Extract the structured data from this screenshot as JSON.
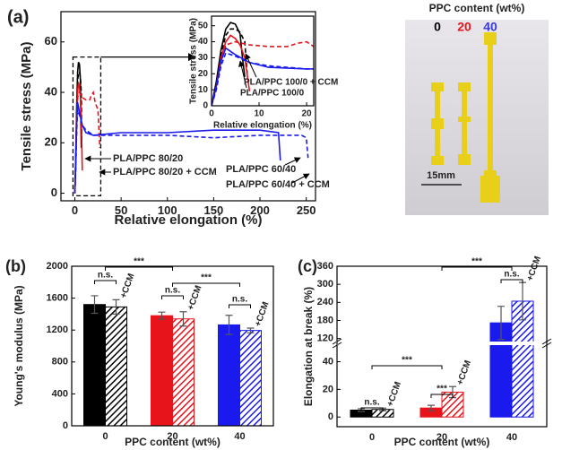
{
  "chart_data": [
    {
      "type": "line",
      "panel_label": "(a)",
      "xlabel": "Relative elongation (%)",
      "ylabel": "Tensile stress (MPa)",
      "xlim": [
        -15,
        260
      ],
      "xticks": [
        0,
        50,
        100,
        150,
        200,
        250
      ],
      "ylim": [
        -3,
        72
      ],
      "yticks": [
        0,
        20,
        40,
        60
      ],
      "series": [
        {
          "name": "PLA/PPC 100/0",
          "color": "#000000",
          "dashed": false,
          "x": [
            0,
            1,
            2,
            3,
            4,
            5,
            6,
            6.5,
            7
          ],
          "values": [
            0,
            15,
            35,
            48,
            52,
            51,
            45,
            30,
            18
          ]
        },
        {
          "name": "PLA/PPC 100/0 + CCM",
          "color": "#000000",
          "dashed": true,
          "x": [
            0,
            1,
            2,
            3,
            4,
            5,
            6,
            7,
            7.5
          ],
          "values": [
            0,
            14,
            32,
            44,
            48,
            48,
            46,
            40,
            20
          ]
        },
        {
          "name": "PLA/PPC 80/20",
          "color": "#e8141c",
          "dashed": false,
          "x": [
            0,
            1,
            2,
            3,
            4,
            5,
            6,
            7,
            8
          ],
          "values": [
            0,
            12,
            30,
            40,
            44,
            42,
            38,
            30,
            9
          ]
        },
        {
          "name": "PLA/PPC 80/20 + CCM",
          "color": "#e8141c",
          "dashed": true,
          "x": [
            0,
            1,
            2,
            3,
            5,
            8,
            12,
            16,
            18,
            20,
            22,
            25,
            27
          ],
          "values": [
            0,
            10,
            28,
            38,
            40,
            38,
            37,
            37,
            39,
            40,
            36,
            33,
            18
          ]
        },
        {
          "name": "PLA/PPC 60/40",
          "color": "#1a1aee",
          "dashed": false,
          "x": [
            0,
            1,
            2,
            3,
            5,
            8,
            12,
            20,
            50,
            100,
            150,
            200,
            220,
            222
          ],
          "values": [
            0,
            12,
            28,
            36,
            32,
            27,
            24,
            23,
            24,
            24,
            25,
            25,
            24,
            13
          ]
        },
        {
          "name": "PLA/PPC 60/40 + CCM",
          "color": "#1a1aee",
          "dashed": true,
          "x": [
            0,
            1,
            2,
            3,
            5,
            8,
            12,
            20,
            50,
            100,
            150,
            200,
            245,
            250,
            252
          ],
          "values": [
            0,
            10,
            25,
            33,
            31,
            27,
            25,
            23,
            23,
            23,
            22,
            23,
            23,
            22,
            14
          ]
        }
      ],
      "inset": {
        "xlabel": "Relative elongation (%)",
        "ylabel": "Tensile stress (MPa)",
        "xlim": [
          0,
          21.5
        ],
        "xticks": [
          0,
          10,
          20
        ],
        "ylim": [
          0,
          56
        ],
        "yticks": [
          0,
          10,
          20,
          30,
          40,
          50
        ]
      }
    },
    {
      "type": "bar",
      "panel_label": "(b)",
      "xlabel": "PPC content (wt%)",
      "ylabel": "Young's modulus (MPa)",
      "categories": [
        "0",
        "20",
        "40"
      ],
      "colors": [
        "#000000",
        "#e8141c",
        "#1a1aee"
      ],
      "ylim": [
        0,
        2000
      ],
      "yticks": [
        0,
        400,
        800,
        1200,
        1600,
        2000
      ],
      "series": [
        {
          "hatched": false,
          "values": [
            1520,
            1380,
            1265
          ],
          "errors": [
            110,
            45,
            120
          ]
        },
        {
          "name": "+CCM",
          "hatched": true,
          "values": [
            1490,
            1340,
            1195
          ],
          "errors": [
            90,
            90,
            30
          ]
        }
      ],
      "annotations": [
        "n.s.",
        "n.s.",
        "n.s.",
        "***",
        "***"
      ]
    },
    {
      "type": "bar",
      "panel_label": "(c)",
      "xlabel": "PPC content (wt%)",
      "ylabel": "Elongation at break (%)",
      "categories": [
        "0",
        "20",
        "40"
      ],
      "colors": [
        "#000000",
        "#e8141c",
        "#1a1aee"
      ],
      "ylim": [
        -7,
        360
      ],
      "axis_break": [
        52,
        110
      ],
      "yticks": [
        0,
        20,
        40,
        120,
        180,
        240,
        300,
        360
      ],
      "series": [
        {
          "hatched": false,
          "values": [
            5,
            6.5,
            172
          ],
          "errors": [
            1,
            2,
            55
          ]
        },
        {
          "name": "+CCM",
          "hatched": true,
          "values": [
            5.5,
            18,
            244
          ],
          "errors": [
            1,
            4,
            62
          ]
        }
      ],
      "annotations": [
        "***",
        "n.s.",
        "n.s.",
        "***",
        "***"
      ]
    }
  ],
  "photo": {
    "title": "PPC content (wt%)",
    "labels": [
      "0",
      "20",
      "40"
    ],
    "scale_bar": "15mm"
  }
}
